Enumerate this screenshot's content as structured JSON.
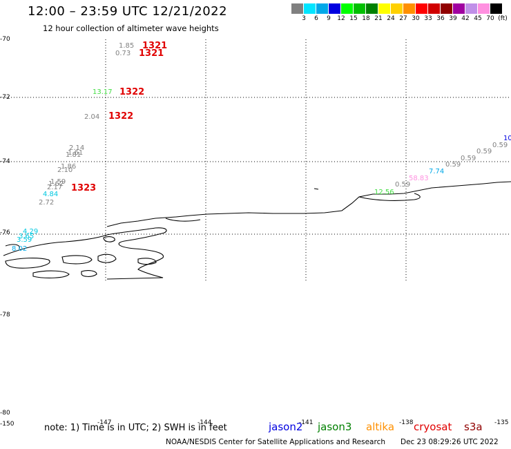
{
  "header": {
    "title": "12:00 – 23:59 UTC 12/21/2022",
    "subtitle": "12 hour collection of altimeter wave heights"
  },
  "legend": {
    "colors": [
      "#808080",
      "#00e5ff",
      "#00a8e8",
      "#0000e0",
      "#00ff00",
      "#00c000",
      "#008000",
      "#ffff00",
      "#ffd000",
      "#ff9000",
      "#ff0000",
      "#d00000",
      "#900000",
      "#a000a0",
      "#c090e8",
      "#ff90e0",
      "#000000"
    ],
    "labels": [
      "3",
      "6",
      "9",
      "12",
      "15",
      "18",
      "21",
      "24",
      "27",
      "30",
      "33",
      "36",
      "39",
      "42",
      "45",
      "70",
      "(ft)"
    ]
  },
  "axes": {
    "lat_labels": [
      "-70",
      "-72",
      "-74",
      "-76",
      "-78",
      "-80"
    ],
    "lon_labels": [
      "-150",
      "-147",
      "-144",
      "-141",
      "-138",
      "-135"
    ]
  },
  "observations": [
    {
      "text": "1.85",
      "color": "#808080"
    },
    {
      "text": "0.73",
      "color": "#808080"
    },
    {
      "text": "13.17",
      "color": "#44dd44"
    },
    {
      "text": "2.04",
      "color": "#808080"
    },
    {
      "text": "2.14",
      "color": "#808080"
    },
    {
      "text": "1.61",
      "color": "#808080"
    },
    {
      "text": "1.81",
      "color": "#808080"
    },
    {
      "text": "1.86",
      "color": "#808080"
    },
    {
      "text": "2.10",
      "color": "#808080"
    },
    {
      "text": "1.59",
      "color": "#808080"
    },
    {
      "text": "1.62",
      "color": "#808080"
    },
    {
      "text": "2.17",
      "color": "#808080"
    },
    {
      "text": "4.84",
      "color": "#00c8e0"
    },
    {
      "text": "2.72",
      "color": "#808080"
    },
    {
      "text": "4.29",
      "color": "#00c8e0"
    },
    {
      "text": "3.65",
      "color": "#00c8e0"
    },
    {
      "text": "3.59",
      "color": "#00c8e0"
    },
    {
      "text": "8.02",
      "color": "#00a8e8"
    },
    {
      "text": "10",
      "color": "#0000e0"
    },
    {
      "text": "0.59",
      "color": "#808080"
    },
    {
      "text": "0.59",
      "color": "#808080"
    },
    {
      "text": "0.59",
      "color": "#808080"
    },
    {
      "text": "0.59",
      "color": "#808080"
    },
    {
      "text": "7.74",
      "color": "#00a8e8"
    },
    {
      "text": "58.83",
      "color": "#ff90e0"
    },
    {
      "text": "0.59",
      "color": "#808080"
    },
    {
      "text": "12.56",
      "color": "#44dd44"
    }
  ],
  "tracks": [
    "1321",
    "1321",
    "1322",
    "1322",
    "1323"
  ],
  "footer": {
    "note": "note:  1) Time is in UTC;  2) SWH is in feet",
    "satellites": [
      {
        "name": "jason2",
        "color": "#0000e0"
      },
      {
        "name": "jason3",
        "color": "#008000"
      },
      {
        "name": "altika",
        "color": "#ff9000"
      },
      {
        "name": "cryosat",
        "color": "#e00000"
      },
      {
        "name": "s3a",
        "color": "#900000"
      }
    ],
    "credit": "NOAA/NESDIS Center for Satellite Applications and Research",
    "timestamp": "Dec 23 08:29:26 UTC 2022"
  }
}
